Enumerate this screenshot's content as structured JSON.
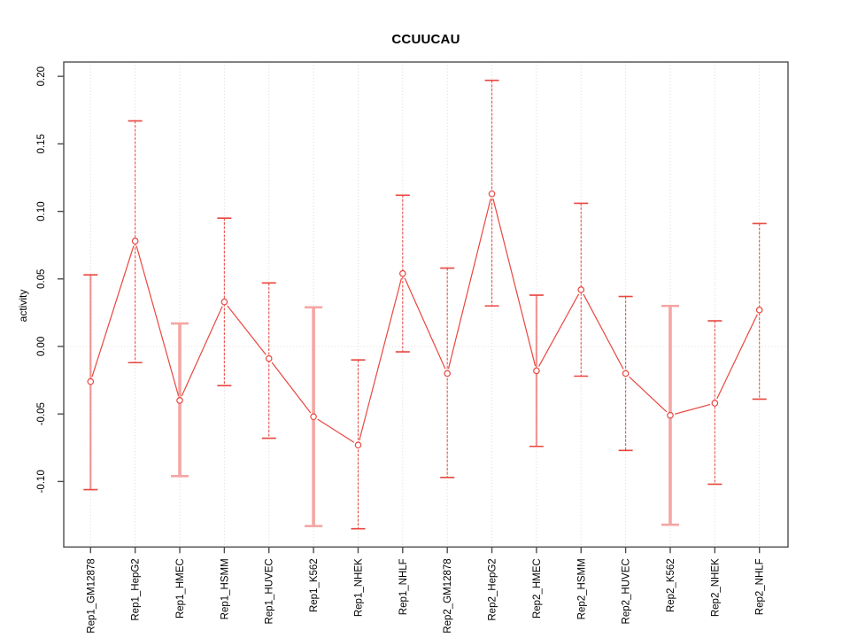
{
  "figure": {
    "title": "CCUUCAU",
    "ylabel": "activity"
  },
  "chart_data": {
    "type": "line",
    "title": "CCUUCAU",
    "xlabel": "",
    "ylabel": "activity",
    "ylim": [
      -0.1485,
      0.2106
    ],
    "yticks": [
      0.2,
      0.15,
      0.1,
      0.05,
      0.0,
      -0.05,
      -0.1
    ],
    "ytick_labels": [
      "0.20",
      "0.15",
      "0.10",
      "0.05",
      "0.00",
      "-0.05",
      "-0.10"
    ],
    "grid": {
      "vertical_gridlines": true,
      "horizontal_zero_line": true
    },
    "legend": "none",
    "marker": "open-circle",
    "categories": [
      "Rep1_GM12878",
      "Rep1_HepG2",
      "Rep1_HMEC",
      "Rep1_HSMM",
      "Rep1_HUVEC",
      "Rep1_K562",
      "Rep1_NHEK",
      "Rep1_NHLF",
      "Rep2_GM12878",
      "Rep2_HepG2",
      "Rep2_HMEC",
      "Rep2_HSMM",
      "Rep2_HUVEC",
      "Rep2_K562",
      "Rep2_NHEK",
      "Rep2_NHLF"
    ],
    "series": [
      {
        "name": "activity",
        "values": [
          -0.026,
          0.078,
          -0.04,
          0.033,
          -0.009,
          -0.052,
          -0.073,
          0.054,
          -0.02,
          0.113,
          -0.018,
          0.042,
          -0.02,
          -0.051,
          -0.042,
          0.027
        ],
        "ci_upper": [
          0.053,
          0.167,
          0.017,
          0.095,
          0.047,
          0.029,
          -0.01,
          0.112,
          0.058,
          0.197,
          0.038,
          0.106,
          0.037,
          0.03,
          0.019,
          0.091
        ],
        "ci_lower": [
          -0.106,
          -0.012,
          -0.096,
          -0.029,
          -0.068,
          -0.133,
          -0.135,
          -0.004,
          -0.097,
          0.03,
          -0.074,
          -0.022,
          -0.077,
          -0.132,
          -0.102,
          -0.039
        ],
        "error_bar_styles": [
          "medium",
          "dark",
          "light",
          "dark",
          "dark",
          "light",
          "dark",
          "dark",
          "dark",
          "dark",
          "medium",
          "dark",
          "dark",
          "light",
          "dark",
          "dark"
        ]
      }
    ],
    "colors": {
      "series": "#e9463f",
      "light_bar": "#f4a6a4",
      "grid": "#d6d6d6",
      "zero_line": "#e9dcda",
      "frame": "#4d4d4d",
      "text": "#000000",
      "background": "#ffffff"
    }
  }
}
